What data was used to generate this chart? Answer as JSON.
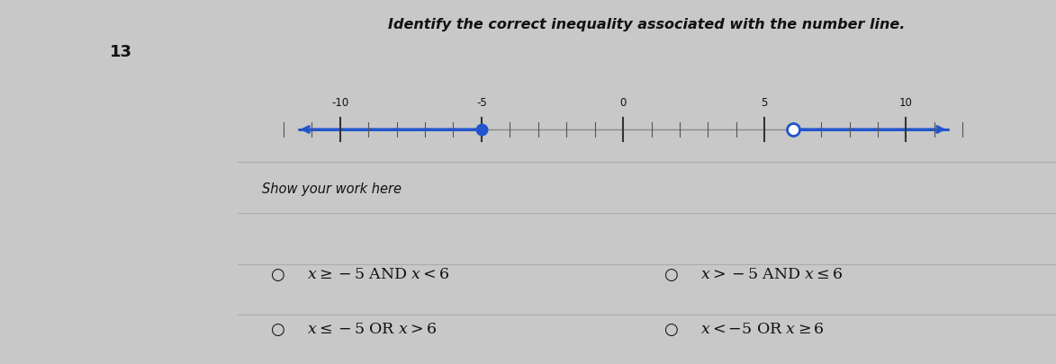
{
  "title": "Identify the correct inequality associated with the number line.",
  "question_number": "13",
  "number_line": {
    "xmin": -12.5,
    "xmax": 12.5,
    "display_min": -11.5,
    "display_max": 11.5,
    "ticks_major": [
      -10,
      -5,
      0,
      5,
      10
    ],
    "filled_dot": -5,
    "open_dot": 6,
    "line_color": "#2255cc",
    "dot_color": "#2255cc",
    "dot_size": 9,
    "base_line_color": "#888888"
  },
  "show_work_label": "Show your work here",
  "choices": [
    {
      "text": "$x\\geq-5$ AND $x<6$"
    },
    {
      "text": "$x>-5$ AND $x\\leq6$"
    },
    {
      "text": "$x\\leq-5$ OR $x>6$"
    },
    {
      "text": "$x<-5$ OR $x\\geq6$"
    }
  ],
  "bg_color": "#c8c8c8",
  "panel_color": "#dedad6",
  "line_sep_color": "#b0aba6",
  "text_color": "#111111",
  "title_fontsize": 11.5,
  "choices_fontsize": 12.5,
  "work_fontsize": 10.5,
  "qnum_fontsize": 13
}
